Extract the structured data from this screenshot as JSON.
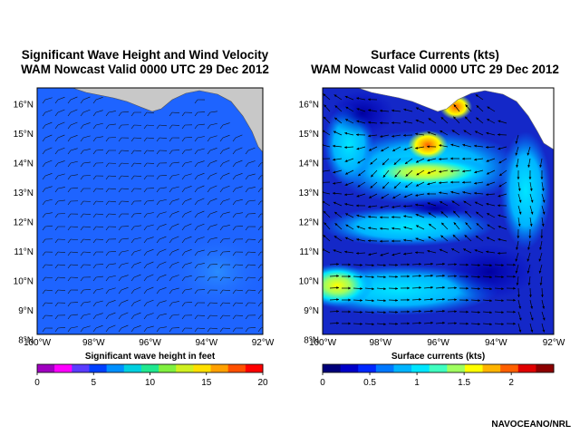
{
  "left_panel": {
    "title_line1": "Significant Wave Height and Wind Velocity",
    "title_line2": "WAM Nowcast Valid 0000 UTC 29 Dec 2012",
    "lat_labels": [
      "16°N",
      "15°N",
      "14°N",
      "13°N",
      "12°N",
      "11°N",
      "10°N",
      "9°N",
      "8°N"
    ],
    "lon_labels": [
      "100°W",
      "98°W",
      "96°W",
      "94°W",
      "92°W"
    ],
    "colorbar_label": "Significant wave height in feet",
    "colorbar_ticks": [
      "0",
      "5",
      "10",
      "15",
      "20"
    ],
    "colorbar_colors": [
      "#a000c0",
      "#ff00ff",
      "#5a3cff",
      "#0040ff",
      "#0090ff",
      "#00d0e0",
      "#20e890",
      "#80f040",
      "#d0f020",
      "#ffe000",
      "#ffa000",
      "#ff5000",
      "#ff0000"
    ],
    "field_color": "#1e64ff",
    "land_color": "#c8c8c8"
  },
  "right_panel": {
    "title_line1": "Surface Currents (kts)",
    "title_line2": "WAM Nowcast Valid 0000 UTC 29 Dec 2012",
    "lat_labels": [
      "16°N",
      "15°N",
      "14°N",
      "13°N",
      "12°N",
      "11°N",
      "10°N",
      "9°N",
      "8°N"
    ],
    "lon_labels": [
      "100°W",
      "98°W",
      "96°W",
      "94°W",
      "92°W"
    ],
    "colorbar_label": "Surface currents (kts)",
    "colorbar_ticks": [
      "0",
      "0.5",
      "1",
      "1.5",
      "2"
    ],
    "colorbar_colors": [
      "#00007a",
      "#0000c8",
      "#0028ff",
      "#0078ff",
      "#00b4ff",
      "#00e6ff",
      "#40ffc0",
      "#a0ff60",
      "#ffff00",
      "#ffb400",
      "#ff6000",
      "#e00000",
      "#8c0000"
    ],
    "field_color": "#1428c8",
    "land_color": "#ffffff"
  },
  "credit": "NAVOCEANO/NRL"
}
